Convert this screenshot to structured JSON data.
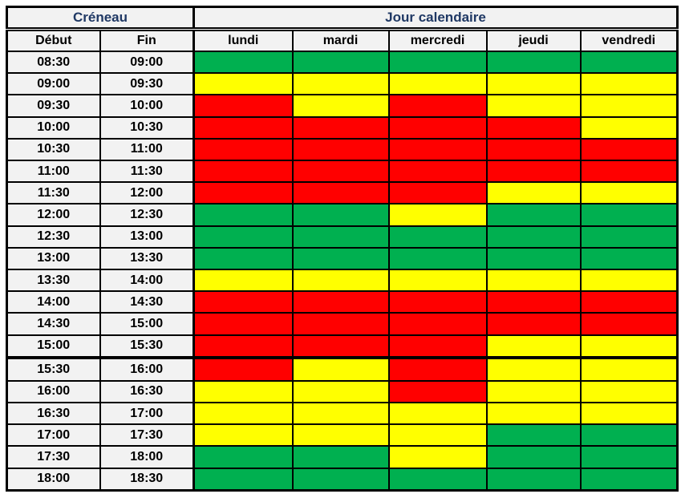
{
  "header": {
    "slot_group_label": "Créneau",
    "day_group_label": "Jour calendaire",
    "start_label": "Début",
    "end_label": "Fin",
    "days": [
      "lundi",
      "mardi",
      "mercredi",
      "jeudi",
      "vendredi"
    ]
  },
  "colors": {
    "header_bg": "#F2F2F2",
    "header_title_text": "#1F3864",
    "cell_text": "#000000",
    "border": "#000000"
  },
  "chart_data": {
    "type": "heatmap",
    "title": "",
    "xlabel": "Jour calendaire",
    "ylabel": "Créneau",
    "columns": [
      "lundi",
      "mardi",
      "mercredi",
      "jeudi",
      "vendredi"
    ],
    "color_map": {
      "G": "#00B050",
      "Y": "#FFFF00",
      "R": "#FF0000"
    },
    "legend": {
      "G": "green",
      "Y": "yellow",
      "R": "red"
    },
    "rows": [
      {
        "start": "08:30",
        "end": "09:00",
        "values": [
          "G",
          "G",
          "G",
          "G",
          "G"
        ]
      },
      {
        "start": "09:00",
        "end": "09:30",
        "values": [
          "Y",
          "Y",
          "Y",
          "Y",
          "Y"
        ]
      },
      {
        "start": "09:30",
        "end": "10:00",
        "values": [
          "R",
          "Y",
          "R",
          "Y",
          "Y"
        ]
      },
      {
        "start": "10:00",
        "end": "10:30",
        "values": [
          "R",
          "R",
          "R",
          "R",
          "Y"
        ]
      },
      {
        "start": "10:30",
        "end": "11:00",
        "values": [
          "R",
          "R",
          "R",
          "R",
          "R"
        ]
      },
      {
        "start": "11:00",
        "end": "11:30",
        "values": [
          "R",
          "R",
          "R",
          "R",
          "R"
        ]
      },
      {
        "start": "11:30",
        "end": "12:00",
        "values": [
          "R",
          "R",
          "R",
          "Y",
          "Y"
        ]
      },
      {
        "start": "12:00",
        "end": "12:30",
        "values": [
          "G",
          "G",
          "Y",
          "G",
          "G"
        ]
      },
      {
        "start": "12:30",
        "end": "13:00",
        "values": [
          "G",
          "G",
          "G",
          "G",
          "G"
        ]
      },
      {
        "start": "13:00",
        "end": "13:30",
        "values": [
          "G",
          "G",
          "G",
          "G",
          "G"
        ]
      },
      {
        "start": "13:30",
        "end": "14:00",
        "values": [
          "Y",
          "Y",
          "Y",
          "Y",
          "Y"
        ]
      },
      {
        "start": "14:00",
        "end": "14:30",
        "values": [
          "R",
          "R",
          "R",
          "R",
          "R"
        ]
      },
      {
        "start": "14:30",
        "end": "15:00",
        "values": [
          "R",
          "R",
          "R",
          "R",
          "R"
        ]
      },
      {
        "start": "15:00",
        "end": "15:30",
        "values": [
          "R",
          "R",
          "R",
          "Y",
          "Y"
        ]
      },
      {
        "start": "15:30",
        "end": "16:00",
        "values": [
          "R",
          "Y",
          "R",
          "Y",
          "Y"
        ],
        "thick_top": true
      },
      {
        "start": "16:00",
        "end": "16:30",
        "values": [
          "Y",
          "Y",
          "R",
          "Y",
          "Y"
        ]
      },
      {
        "start": "16:30",
        "end": "17:00",
        "values": [
          "Y",
          "Y",
          "Y",
          "Y",
          "Y"
        ]
      },
      {
        "start": "17:00",
        "end": "17:30",
        "values": [
          "Y",
          "Y",
          "Y",
          "G",
          "G"
        ]
      },
      {
        "start": "17:30",
        "end": "18:00",
        "values": [
          "G",
          "G",
          "Y",
          "G",
          "G"
        ]
      },
      {
        "start": "18:00",
        "end": "18:30",
        "values": [
          "G",
          "G",
          "G",
          "G",
          "G"
        ]
      }
    ]
  }
}
